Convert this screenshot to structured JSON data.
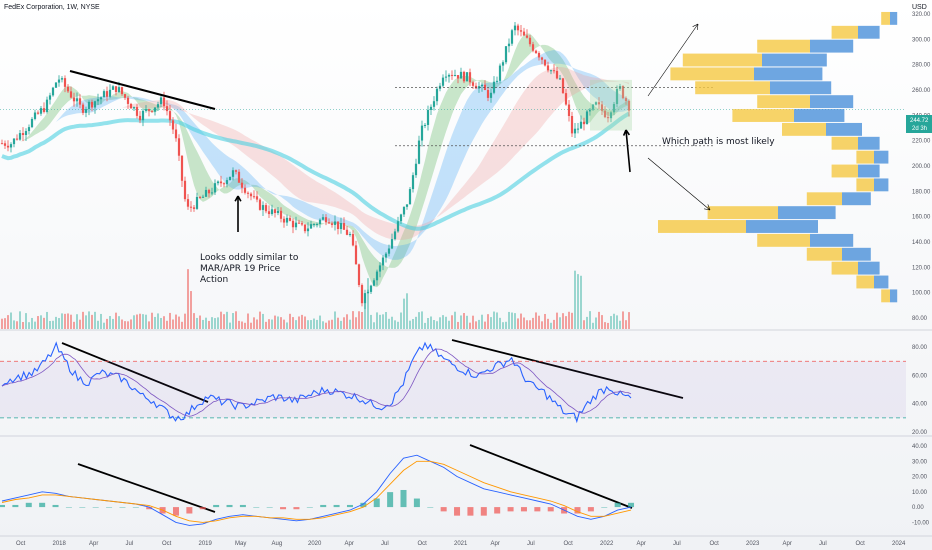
{
  "header": {
    "title": "FedEx Corporation, 1W, NYSE",
    "currency": "USD"
  },
  "colors": {
    "bull": "#26a69a",
    "bear": "#ef5350",
    "rsi_line": "#2962ff",
    "rsi_ma": "#7e57c2",
    "macd_line": "#2962ff",
    "signal_line": "#ff9800",
    "vp_up": "#4a90d9",
    "vp_down": "#f5c842",
    "label_bg": "#26a69a"
  },
  "annotations": {
    "note_similar": [
      "Looks oddly similar to",
      "MAR/APR 19 Price",
      "Action"
    ],
    "note_path": "Which path is most likely"
  },
  "price_label": {
    "value": "244.72",
    "countdown": "2d 3h"
  },
  "chart_data": [
    {
      "type": "candlestick",
      "panel": "price",
      "timeframe": "1W",
      "ylim": [
        80,
        320
      ],
      "y_ticks": [
        "320.00",
        "300.00",
        "280.00",
        "260.00",
        "240.00",
        "220.00",
        "200.00",
        "180.00",
        "160.00",
        "140.00",
        "120.00",
        "100.00",
        "80.00"
      ],
      "close_anchor_points": [
        {
          "date": "2017-09",
          "close": 218
        },
        {
          "date": "2017-12",
          "close": 248
        },
        {
          "date": "2018-01",
          "close": 270
        },
        {
          "date": "2018-03",
          "close": 245
        },
        {
          "date": "2018-06",
          "close": 262
        },
        {
          "date": "2018-08",
          "close": 240
        },
        {
          "date": "2018-10",
          "close": 252
        },
        {
          "date": "2018-11",
          "close": 225
        },
        {
          "date": "2018-12",
          "close": 165
        },
        {
          "date": "2019-02",
          "close": 180
        },
        {
          "date": "2019-04",
          "close": 195
        },
        {
          "date": "2019-06",
          "close": 170
        },
        {
          "date": "2019-08",
          "close": 160
        },
        {
          "date": "2019-10",
          "close": 150
        },
        {
          "date": "2019-12",
          "close": 160
        },
        {
          "date": "2020-02",
          "close": 145
        },
        {
          "date": "2020-03",
          "close": 95
        },
        {
          "date": "2020-05",
          "close": 130
        },
        {
          "date": "2020-07",
          "close": 175
        },
        {
          "date": "2020-08",
          "close": 225
        },
        {
          "date": "2020-10",
          "close": 275
        },
        {
          "date": "2020-12",
          "close": 270
        },
        {
          "date": "2021-02",
          "close": 255
        },
        {
          "date": "2021-04",
          "close": 310
        },
        {
          "date": "2021-05",
          "close": 300
        },
        {
          "date": "2021-06",
          "close": 290
        },
        {
          "date": "2021-08",
          "close": 265
        },
        {
          "date": "2021-09",
          "close": 225
        },
        {
          "date": "2021-11",
          "close": 248
        },
        {
          "date": "2021-12",
          "close": 240
        },
        {
          "date": "2022-01",
          "close": 262
        },
        {
          "date": "2022-02",
          "close": 244.72
        }
      ],
      "horizontal_levels": [
        262,
        216
      ]
    },
    {
      "type": "histogram",
      "panel": "volume",
      "series": [
        {
          "values_relative": [
            0.3,
            0.4,
            0.5,
            0.9,
            0.6,
            0.5,
            0.7,
            1.0,
            0.6,
            0.5,
            0.4,
            0.8,
            0.5,
            0.4,
            0.6,
            0.9,
            0.5,
            0.4
          ]
        }
      ]
    },
    {
      "type": "line",
      "panel": "rsi",
      "ylim": [
        20,
        85
      ],
      "y_ticks": [
        "80.00",
        "60.00",
        "40.00",
        "20.00"
      ],
      "levels": [
        70,
        30
      ],
      "series": [
        {
          "values": [
            55,
            58,
            60,
            62,
            70,
            80,
            68,
            58,
            55,
            62,
            60,
            58,
            52,
            45,
            42,
            35,
            30,
            32,
            40,
            45,
            42,
            40,
            38,
            40,
            42,
            45,
            44,
            42,
            45,
            48,
            50,
            48,
            46,
            44,
            40,
            38,
            42,
            55,
            72,
            82,
            76,
            70,
            66,
            62,
            60,
            65,
            68,
            72,
            60,
            52,
            48,
            40,
            33,
            30,
            40,
            48,
            52,
            46,
            44
          ]
        }
      ]
    },
    {
      "type": "line",
      "panel": "macd",
      "ylim": [
        -15,
        40
      ],
      "y_ticks": [
        "40.00",
        "30.00",
        "20.00",
        "10.00",
        "0.00",
        "-10.00"
      ],
      "series": [
        {
          "values": [
            4,
            6,
            8,
            10,
            9,
            7,
            6,
            5,
            4,
            3,
            2,
            0,
            -5,
            -10,
            -12,
            -11,
            -8,
            -6,
            -5,
            -6,
            -7,
            -8,
            -9,
            -8,
            -6,
            -4,
            -2,
            2,
            10,
            22,
            32,
            34,
            30,
            26,
            20,
            16,
            12,
            10,
            8,
            6,
            4,
            2,
            -2,
            -6,
            -8,
            -6,
            -2,
            0
          ]
        },
        {
          "values": [
            3,
            5,
            6,
            8,
            8,
            7,
            6,
            5,
            4,
            3,
            2,
            1,
            -2,
            -6,
            -9,
            -10,
            -9,
            -7,
            -6,
            -6,
            -7,
            -7,
            -8,
            -8,
            -7,
            -5,
            -3,
            0,
            6,
            15,
            24,
            30,
            30,
            28,
            24,
            20,
            16,
            13,
            10,
            8,
            6,
            4,
            1,
            -3,
            -6,
            -6,
            -4,
            -2
          ]
        }
      ]
    },
    {
      "type": "bar",
      "panel": "volume_profile",
      "series": [
        {
          "name": "",
          "values": [
            0.1,
            0.3,
            0.6,
            0.9,
            0.95,
            0.85,
            0.6,
            0.7,
            0.5,
            0.3,
            0.2,
            0.3,
            0.2,
            0.4,
            0.8,
            1.0,
            0.6,
            0.4,
            0.3,
            0.2,
            0.1
          ]
        }
      ]
    }
  ],
  "x_axis_ticks": [
    "Oct",
    "2018",
    "Apr",
    "Jul",
    "Oct",
    "2019",
    "May",
    "Aug",
    "2020",
    "Apr",
    "Jul",
    "Oct",
    "2021",
    "Apr",
    "Jul",
    "Oct",
    "2022",
    "Apr",
    "Jul",
    "Oct",
    "2023",
    "Apr",
    "Jul",
    "Oct",
    "2024"
  ]
}
